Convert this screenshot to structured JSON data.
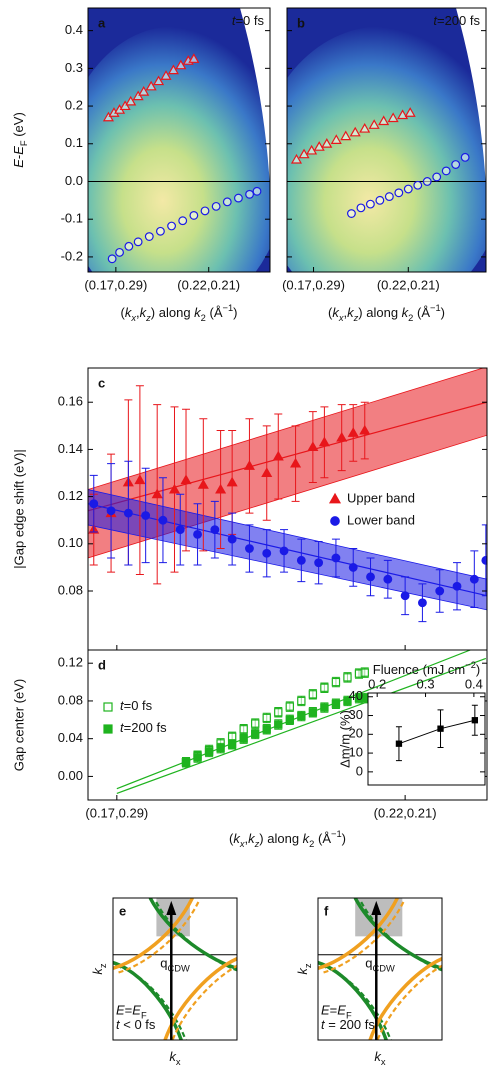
{
  "chart_data": [
    {
      "type": "arpes",
      "label": "a",
      "annotation": [
        [
          "t",
          "i"
        ],
        [
          "=0 fs",
          ""
        ]
      ],
      "ylabel": [
        [
          "E",
          "i"
        ],
        [
          "-",
          ""
        ],
        [
          "E",
          "i"
        ],
        [
          "F",
          "sub"
        ],
        [
          " (eV)",
          ""
        ]
      ],
      "xlabel": [
        [
          "(",
          ""
        ],
        [
          "k",
          "i"
        ],
        [
          "x",
          "sub-i"
        ],
        [
          ",",
          ""
        ],
        [
          "k",
          "i"
        ],
        [
          "z",
          "sub-i"
        ],
        [
          ") along ",
          ""
        ],
        [
          "k",
          "i"
        ],
        [
          "2",
          "sub"
        ],
        [
          " (Å",
          ""
        ],
        [
          "−1",
          "sup"
        ],
        [
          ")",
          ""
        ]
      ],
      "xlim": [
        0.155,
        0.253
      ],
      "xticks": [
        {
          "value": 0.17,
          "label": "(0.17,0.29)"
        },
        {
          "value": 0.22,
          "label": "(0.22,0.21)"
        }
      ],
      "ylim": [
        -0.24,
        0.46
      ],
      "yticks": [
        -0.2,
        -0.1,
        {
          "value": 0,
          "label": "0.0"
        },
        0.1,
        0.2,
        0.3,
        0.4
      ],
      "zero_line": true,
      "series": [
        {
          "name": "Upper band",
          "color": "#e8161b",
          "marker": "triangle",
          "filled": false,
          "x": [
            0.166,
            0.169,
            0.172,
            0.175,
            0.178,
            0.182,
            0.185,
            0.189,
            0.193,
            0.197,
            0.201,
            0.205,
            0.209,
            0.212
          ],
          "values": [
            0.17,
            0.182,
            0.19,
            0.2,
            0.212,
            0.226,
            0.238,
            0.252,
            0.266,
            0.28,
            0.295,
            0.308,
            0.32,
            0.325
          ]
        },
        {
          "name": "Lower band",
          "color": "#1a1ae6",
          "marker": "circle",
          "filled": false,
          "x": [
            0.168,
            0.172,
            0.177,
            0.182,
            0.188,
            0.194,
            0.2,
            0.206,
            0.212,
            0.218,
            0.224,
            0.23,
            0.236,
            0.242,
            0.246
          ],
          "values": [
            -0.205,
            -0.188,
            -0.172,
            -0.16,
            -0.146,
            -0.132,
            -0.118,
            -0.104,
            -0.09,
            -0.078,
            -0.066,
            -0.054,
            -0.044,
            -0.034,
            -0.026
          ]
        }
      ]
    },
    {
      "type": "arpes",
      "label": "b",
      "annotation": [
        [
          "t",
          "i"
        ],
        [
          "=200 fs",
          ""
        ]
      ],
      "xlabel": [
        [
          "(",
          ""
        ],
        [
          "k",
          "i"
        ],
        [
          "x",
          "sub-i"
        ],
        [
          ",",
          ""
        ],
        [
          "k",
          "i"
        ],
        [
          "z",
          "sub-i"
        ],
        [
          ") along ",
          ""
        ],
        [
          "k",
          "i"
        ],
        [
          "2",
          "sub"
        ],
        [
          " (Å",
          ""
        ],
        [
          "−1",
          "sup"
        ],
        [
          ")",
          ""
        ]
      ],
      "xlim": [
        0.156,
        0.261
      ],
      "xticks": [
        {
          "value": 0.17,
          "label": "(0.17,0.29)"
        },
        {
          "value": 0.22,
          "label": "(0.22,0.21)"
        }
      ],
      "ylim": [
        -0.24,
        0.46
      ],
      "yticks": [
        -0.2,
        -0.1,
        0,
        0.1,
        0.2,
        0.3,
        0.4
      ],
      "zero_line": true,
      "series": [
        {
          "name": "Upper band",
          "color": "#e8161b",
          "marker": "triangle",
          "filled": false,
          "x": [
            0.161,
            0.165,
            0.169,
            0.173,
            0.177,
            0.182,
            0.187,
            0.192,
            0.197,
            0.202,
            0.207,
            0.212,
            0.217,
            0.221
          ],
          "values": [
            0.058,
            0.072,
            0.082,
            0.092,
            0.1,
            0.11,
            0.12,
            0.13,
            0.14,
            0.15,
            0.16,
            0.168,
            0.176,
            0.182
          ]
        },
        {
          "name": "Lower band",
          "color": "#1a1ae6",
          "marker": "circle",
          "filled": false,
          "x": [
            0.19,
            0.195,
            0.2,
            0.205,
            0.21,
            0.215,
            0.22,
            0.225,
            0.23,
            0.235,
            0.24,
            0.245,
            0.25
          ],
          "values": [
            -0.085,
            -0.07,
            -0.06,
            -0.05,
            -0.04,
            -0.03,
            -0.02,
            -0.01,
            0.0,
            0.012,
            0.028,
            0.045,
            0.064
          ]
        }
      ]
    },
    {
      "type": "errorbar",
      "label": "c",
      "ylabel": "|Gap edge shift (eV)|",
      "xlim": [
        0.165,
        0.2342
      ],
      "xticks": [
        0.17,
        0.22
      ],
      "ylim": [
        0.055,
        0.1745
      ],
      "yticks": [
        0.08,
        {
          "value": 0.1,
          "label": "0.10"
        },
        0.12,
        0.14,
        0.16
      ],
      "legend": "center right",
      "fits": [
        {
          "color": "#e8161b",
          "x": [
            0.165,
            0.2342
          ],
          "values": [
            0.114,
            0.16
          ],
          "lower": [
            0.094,
            0.146
          ],
          "upper": [
            0.123,
            0.175
          ]
        },
        {
          "color": "#1a1ae6",
          "x": [
            0.165,
            0.2342
          ],
          "values": [
            0.117,
            0.078
          ],
          "lower": [
            0.108,
            0.072
          ],
          "upper": [
            0.123,
            0.085
          ]
        }
      ],
      "series": [
        {
          "name": "Upper band",
          "color": "#e8161b",
          "marker": "triangle",
          "filled": true,
          "x": [
            0.166,
            0.169,
            0.172,
            0.174,
            0.177,
            0.18,
            0.182,
            0.185,
            0.188,
            0.19,
            0.193,
            0.196,
            0.198,
            0.201,
            0.204,
            0.206,
            0.209,
            0.211,
            0.213
          ],
          "values": [
            0.106,
            0.113,
            0.126,
            0.127,
            0.121,
            0.123,
            0.127,
            0.125,
            0.123,
            0.126,
            0.133,
            0.13,
            0.137,
            0.134,
            0.141,
            0.143,
            0.145,
            0.147,
            0.148
          ],
          "errors": [
            0.015,
            0.025,
            0.035,
            0.04,
            0.038,
            0.035,
            0.03,
            0.028,
            0.025,
            0.022,
            0.02,
            0.02,
            0.018,
            0.016,
            0.015,
            0.015,
            0.014,
            0.012,
            0.012
          ]
        },
        {
          "name": "Lower band",
          "color": "#1a1ae6",
          "marker": "circle",
          "filled": true,
          "x": [
            0.166,
            0.169,
            0.172,
            0.175,
            0.178,
            0.181,
            0.184,
            0.187,
            0.19,
            0.193,
            0.196,
            0.199,
            0.202,
            0.205,
            0.208,
            0.211,
            0.214,
            0.217,
            0.22,
            0.223,
            0.226,
            0.229,
            0.232,
            0.234
          ],
          "values": [
            0.117,
            0.114,
            0.113,
            0.112,
            0.11,
            0.106,
            0.104,
            0.106,
            0.102,
            0.098,
            0.096,
            0.097,
            0.093,
            0.092,
            0.094,
            0.09,
            0.086,
            0.085,
            0.078,
            0.075,
            0.08,
            0.082,
            0.085,
            0.093
          ],
          "errors": [
            0.012,
            0.02,
            0.022,
            0.02,
            0.018,
            0.015,
            0.013,
            0.012,
            0.011,
            0.01,
            0.01,
            0.009,
            0.009,
            0.009,
            0.008,
            0.008,
            0.008,
            0.008,
            0.008,
            0.008,
            0.009,
            0.01,
            0.012,
            0.015
          ]
        }
      ]
    },
    {
      "type": "errorbar",
      "label": "d",
      "ylabel": "Gap center (eV)",
      "xlabel": [
        [
          "(",
          ""
        ],
        [
          "k",
          "i"
        ],
        [
          "x",
          "sub-i"
        ],
        [
          ",",
          ""
        ],
        [
          "k",
          "i"
        ],
        [
          "z",
          "sub-i"
        ],
        [
          ") along ",
          ""
        ],
        [
          "k",
          "i"
        ],
        [
          "2",
          "sub"
        ],
        [
          " (Å",
          ""
        ],
        [
          "−1",
          "sup"
        ],
        [
          ")",
          ""
        ]
      ],
      "xlim": [
        0.165,
        0.2342
      ],
      "xticks": [
        {
          "value": 0.17,
          "label": "(0.17,0.29)"
        },
        {
          "value": 0.22,
          "label": "(0.22,0.21)"
        }
      ],
      "ylim": [
        -0.025,
        0.134
      ],
      "yticks": [
        {
          "value": 0,
          "label": "0.00"
        },
        0.04,
        0.08,
        0.12
      ],
      "legend": "center left",
      "fits": [
        {
          "color": "#1fb31f",
          "x": [
            0.17,
            0.2313
          ],
          "values": [
            -0.013,
            0.134
          ]
        },
        {
          "color": "#1fb31f",
          "x": [
            0.17,
            0.234
          ],
          "values": [
            -0.018,
            0.125
          ]
        }
      ],
      "series": [
        {
          "name": [
            [
              "t",
              "i"
            ],
            [
              "=0 fs",
              ""
            ]
          ],
          "color": "#1fb31f",
          "marker": "square",
          "filled": false,
          "x": [
            0.182,
            0.184,
            0.186,
            0.188,
            0.19,
            0.192,
            0.194,
            0.196,
            0.198,
            0.2,
            0.202,
            0.204,
            0.206,
            0.208,
            0.21,
            0.212,
            0.213
          ],
          "values": [
            0.015,
            0.022,
            0.028,
            0.035,
            0.042,
            0.05,
            0.056,
            0.062,
            0.068,
            0.074,
            0.08,
            0.087,
            0.094,
            0.1,
            0.105,
            0.109,
            0.11
          ],
          "errors": [
            0.005,
            0.005,
            0.005,
            0.005,
            0.005,
            0.005,
            0.005,
            0.005,
            0.005,
            0.005,
            0.005,
            0.005,
            0.005,
            0.005,
            0.005,
            0.005,
            0.005
          ]
        },
        {
          "name": [
            [
              "t",
              "i"
            ],
            [
              "=200 fs",
              ""
            ]
          ],
          "color": "#1fb31f",
          "marker": "square",
          "filled": true,
          "x": [
            0.182,
            0.184,
            0.186,
            0.188,
            0.19,
            0.192,
            0.194,
            0.196,
            0.198,
            0.2,
            0.202,
            0.204,
            0.206,
            0.208,
            0.21,
            0.212,
            0.213
          ],
          "values": [
            0.015,
            0.02,
            0.026,
            0.03,
            0.034,
            0.04,
            0.045,
            0.05,
            0.055,
            0.06,
            0.064,
            0.068,
            0.073,
            0.077,
            0.08,
            0.083,
            0.083
          ],
          "errors": [
            0.005,
            0.005,
            0.005,
            0.005,
            0.005,
            0.005,
            0.005,
            0.005,
            0.005,
            0.005,
            0.005,
            0.005,
            0.005,
            0.005,
            0.005,
            0.005,
            0.005
          ]
        }
      ]
    },
    {
      "type": "errorbar",
      "xaxis": "top",
      "xlabel": [
        [
          "Fluence (mJ cm",
          ""
        ],
        [
          "−2",
          "sup"
        ],
        [
          ")",
          ""
        ]
      ],
      "ylabel": "Δm/m (%)",
      "xlim": [
        0.181,
        0.423
      ],
      "xticks": [
        0.2,
        0.3,
        0.4
      ],
      "ylim": [
        -7,
        42
      ],
      "yticks": [
        0,
        10,
        20,
        30,
        40
      ],
      "series": [
        {
          "color": "#000000",
          "marker": "square",
          "filled": true,
          "line": true,
          "x": [
            0.245,
            0.331,
            0.402
          ],
          "values": [
            15,
            23,
            27.5
          ],
          "errors": [
            9,
            10,
            8
          ]
        }
      ]
    }
  ],
  "diagrams": [
    {
      "label": "e",
      "kz": [
        [
          "k",
          "i"
        ],
        [
          "z",
          "sub"
        ]
      ],
      "kx": [
        [
          "k",
          "i"
        ],
        [
          "x",
          "sub"
        ]
      ],
      "q": [
        [
          "q",
          ""
        ],
        [
          "CDW",
          "sub"
        ]
      ],
      "energy": [
        [
          "E",
          "i"
        ],
        [
          "=",
          ""
        ],
        [
          "E",
          "i"
        ],
        [
          "F",
          "sub"
        ]
      ],
      "time": [
        [
          "t",
          "i"
        ],
        [
          " < 0 fs",
          ""
        ]
      ]
    },
    {
      "label": "f",
      "kz": [
        [
          "k",
          "i"
        ],
        [
          "z",
          "sub"
        ]
      ],
      "kx": [
        [
          "k",
          "i"
        ],
        [
          "x",
          "sub"
        ]
      ],
      "q": [
        [
          "q",
          ""
        ],
        [
          "CDW",
          "sub"
        ]
      ],
      "energy": [
        [
          "E",
          "i"
        ],
        [
          "=",
          ""
        ],
        [
          "E",
          "i"
        ],
        [
          "F",
          "sub"
        ]
      ],
      "time": [
        [
          "t",
          "i"
        ],
        [
          " = 200 fs",
          ""
        ]
      ]
    }
  ]
}
